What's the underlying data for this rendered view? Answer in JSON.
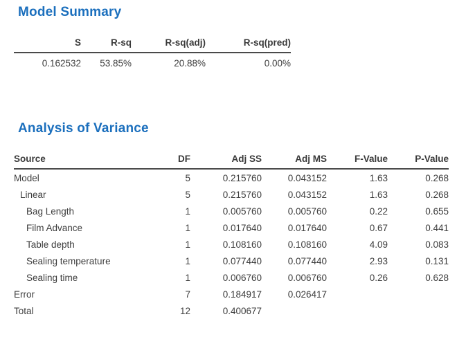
{
  "model_summary": {
    "title": "Model Summary",
    "headers": [
      "S",
      "R-sq",
      "R-sq(adj)",
      "R-sq(pred)"
    ],
    "values": [
      "0.162532",
      "53.85%",
      "20.88%",
      "0.00%"
    ]
  },
  "anova": {
    "title": "Analysis of Variance",
    "headers": [
      "Source",
      "DF",
      "Adj SS",
      "Adj MS",
      "F-Value",
      "P-Value"
    ],
    "rows": [
      {
        "source": "Model",
        "indent": 0,
        "df": "5",
        "adj_ss": "0.215760",
        "adj_ms": "0.043152",
        "f_value": "1.63",
        "p_value": "0.268"
      },
      {
        "source": "Linear",
        "indent": 1,
        "df": "5",
        "adj_ss": "0.215760",
        "adj_ms": "0.043152",
        "f_value": "1.63",
        "p_value": "0.268"
      },
      {
        "source": "Bag Length",
        "indent": 2,
        "df": "1",
        "adj_ss": "0.005760",
        "adj_ms": "0.005760",
        "f_value": "0.22",
        "p_value": "0.655"
      },
      {
        "source": "Film Advance",
        "indent": 2,
        "df": "1",
        "adj_ss": "0.017640",
        "adj_ms": "0.017640",
        "f_value": "0.67",
        "p_value": "0.441"
      },
      {
        "source": "Table depth",
        "indent": 2,
        "df": "1",
        "adj_ss": "0.108160",
        "adj_ms": "0.108160",
        "f_value": "4.09",
        "p_value": "0.083"
      },
      {
        "source": "Sealing temperature",
        "indent": 2,
        "df": "1",
        "adj_ss": "0.077440",
        "adj_ms": "0.077440",
        "f_value": "2.93",
        "p_value": "0.131"
      },
      {
        "source": "Sealing time",
        "indent": 2,
        "df": "1",
        "adj_ss": "0.006760",
        "adj_ms": "0.006760",
        "f_value": "0.26",
        "p_value": "0.628"
      },
      {
        "source": "Error",
        "indent": 0,
        "df": "7",
        "adj_ss": "0.184917",
        "adj_ms": "0.026417",
        "f_value": "",
        "p_value": ""
      },
      {
        "source": "Total",
        "indent": 0,
        "df": "12",
        "adj_ss": "0.400677",
        "adj_ms": "",
        "f_value": "",
        "p_value": ""
      }
    ]
  },
  "colors": {
    "title_blue": "#1b6fbd",
    "body_text": "#3d3d3d",
    "rule_line": "#4a4a4a"
  }
}
